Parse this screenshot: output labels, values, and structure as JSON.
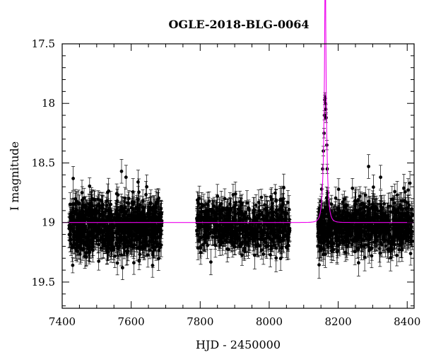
{
  "chart_data": {
    "type": "scatter",
    "title": "OGLE-2018-BLG-0064",
    "xlabel": "HJD - 2450000",
    "ylabel": "I magnitude",
    "xlim": [
      7400,
      8420
    ],
    "ylim": [
      17.5,
      19.72
    ],
    "y_inverted": true,
    "grid": false,
    "legend": "none",
    "xticks": [
      7400,
      7600,
      7800,
      8000,
      8200,
      8400
    ],
    "yticks": [
      17.5,
      18,
      18.5,
      19,
      19.5
    ],
    "baseline_magnitude": 19.0,
    "seasons": [
      {
        "start": 7420,
        "end": 7690,
        "n_points": 900,
        "mean_mag": 19.03,
        "scatter": 0.11,
        "errorbar": 0.09
      },
      {
        "start": 7790,
        "end": 8060,
        "n_points": 650,
        "mean_mag": 19.03,
        "scatter": 0.1,
        "errorbar": 0.09
      },
      {
        "start": 8140,
        "end": 8415,
        "n_points": 800,
        "mean_mag": 19.03,
        "scatter": 0.1,
        "errorbar": 0.09
      }
    ],
    "event_points": [
      {
        "x": 8148,
        "y": 18.97
      },
      {
        "x": 8150,
        "y": 18.82
      },
      {
        "x": 8152,
        "y": 18.72
      },
      {
        "x": 8155,
        "y": 18.55
      },
      {
        "x": 8157,
        "y": 18.4
      },
      {
        "x": 8159,
        "y": 18.25
      },
      {
        "x": 8160,
        "y": 18.1
      },
      {
        "x": 8161,
        "y": 17.97
      },
      {
        "x": 8162,
        "y": 17.95
      },
      {
        "x": 8163,
        "y": 18.0
      },
      {
        "x": 8164,
        "y": 18.05
      },
      {
        "x": 8165,
        "y": 18.12
      },
      {
        "x": 8167,
        "y": 18.35
      },
      {
        "x": 8168,
        "y": 18.55
      },
      {
        "x": 8170,
        "y": 18.75
      },
      {
        "x": 8172,
        "y": 18.88
      },
      {
        "x": 8175,
        "y": 18.95
      }
    ],
    "outliers": [
      {
        "x": 7432,
        "y": 18.63
      },
      {
        "x": 7572,
        "y": 18.57
      },
      {
        "x": 7585,
        "y": 18.62
      },
      {
        "x": 7620,
        "y": 18.66
      },
      {
        "x": 7645,
        "y": 18.7
      },
      {
        "x": 7662,
        "y": 19.36
      },
      {
        "x": 7575,
        "y": 19.38
      },
      {
        "x": 7560,
        "y": 19.34
      },
      {
        "x": 7850,
        "y": 18.78
      },
      {
        "x": 7902,
        "y": 18.76
      },
      {
        "x": 8288,
        "y": 18.53
      },
      {
        "x": 8323,
        "y": 18.62
      },
      {
        "x": 8408,
        "y": 18.67
      },
      {
        "x": 8297,
        "y": 19.28
      },
      {
        "x": 8020,
        "y": 18.82
      }
    ],
    "model": {
      "type": "point-lens",
      "baseline": 19.0,
      "t0": 8162.5,
      "u0": 0.123,
      "tE": 8.0,
      "color": "#ee00ee"
    },
    "point_color": "#000000"
  }
}
